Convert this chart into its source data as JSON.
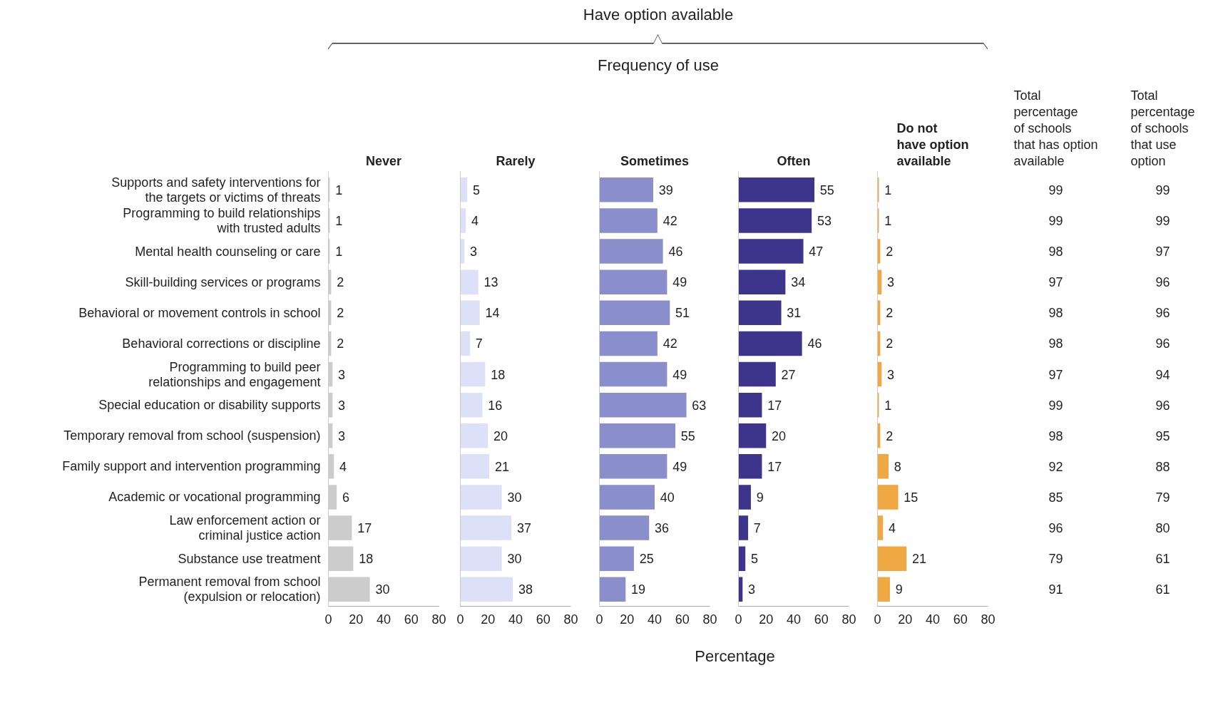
{
  "chart_data": [
    {
      "type": "other",
      "annotations": [
        "Have option available",
        "Frequency of use",
        "Percentage"
      ]
    },
    {
      "type": "bar",
      "orientation": "horizontal",
      "title": "Never",
      "categories": [
        "Supports and safety interventions for\nthe targets or victims of threats",
        "Programming to build relationships\nwith trusted adults",
        "Mental health counseling or care",
        "Skill-building services or programs",
        "Behavioral or movement controls in school",
        "Behavioral corrections or discipline",
        "Programming to build peer\nrelationships and engagement",
        "Special education or disability supports",
        "Temporary removal from school (suspension)",
        "Family support and intervention programming",
        "Academic or vocational programming",
        "Law enforcement action or\ncriminal justice action",
        "Substance use treatment",
        "Permanent removal from school\n(expulsion or relocation)"
      ],
      "values": [
        1,
        1,
        1,
        2,
        2,
        2,
        3,
        3,
        3,
        4,
        6,
        17,
        18,
        30
      ],
      "color": "#cccccc",
      "xlim": [
        0,
        80
      ],
      "xticks": [
        0,
        20,
        40,
        60,
        80
      ],
      "data_labels": true,
      "grid": false
    },
    {
      "type": "bar",
      "orientation": "horizontal",
      "title": "Rarely",
      "values": [
        5,
        4,
        3,
        13,
        14,
        7,
        18,
        16,
        20,
        21,
        30,
        37,
        30,
        38
      ],
      "color": "#dde1f8",
      "xlim": [
        0,
        80
      ],
      "xticks": [
        0,
        20,
        40,
        60,
        80
      ],
      "data_labels": true,
      "grid": false,
      "tick_labels": "x"
    },
    {
      "type": "bar",
      "orientation": "horizontal",
      "title": "Sometimes",
      "values": [
        39,
        42,
        46,
        49,
        51,
        42,
        49,
        63,
        55,
        49,
        40,
        36,
        25,
        19
      ],
      "color": "#8a8fcb",
      "xlim": [
        0,
        80
      ],
      "xticks": [
        0,
        20,
        40,
        60,
        80
      ],
      "data_labels": true,
      "grid": false,
      "tick_labels": "x"
    },
    {
      "type": "bar",
      "orientation": "horizontal",
      "title": "Often",
      "values": [
        55,
        53,
        47,
        34,
        31,
        46,
        27,
        17,
        20,
        17,
        9,
        7,
        5,
        3
      ],
      "color": "#3d348b",
      "xlim": [
        0,
        80
      ],
      "xticks": [
        0,
        20,
        40,
        60,
        80
      ],
      "data_labels": true,
      "grid": false,
      "tick_labels": "x"
    },
    {
      "type": "bar",
      "orientation": "horizontal",
      "title": "Do not\nhave option\navailable",
      "values": [
        1,
        1,
        2,
        3,
        2,
        2,
        3,
        1,
        2,
        8,
        15,
        4,
        21,
        9
      ],
      "color": "#f0a843",
      "xlim": [
        0,
        80
      ],
      "xticks": [
        0,
        20,
        40,
        60,
        80
      ],
      "data_labels": true,
      "grid": false,
      "tick_labels": "x"
    },
    {
      "type": "other",
      "title": "Total\npercentage\nof schools\nthat has option\navailable",
      "annotations": [
        "99",
        "99",
        "98",
        "97",
        "98",
        "98",
        "97",
        "99",
        "98",
        "92",
        "85",
        "96",
        "79",
        "91"
      ]
    },
    {
      "type": "other",
      "title": "Total\npercentage\nof schools\nthat use\noption",
      "annotations": [
        "99",
        "99",
        "97",
        "96",
        "96",
        "96",
        "94",
        "96",
        "95",
        "88",
        "79",
        "80",
        "61",
        "61"
      ]
    }
  ]
}
